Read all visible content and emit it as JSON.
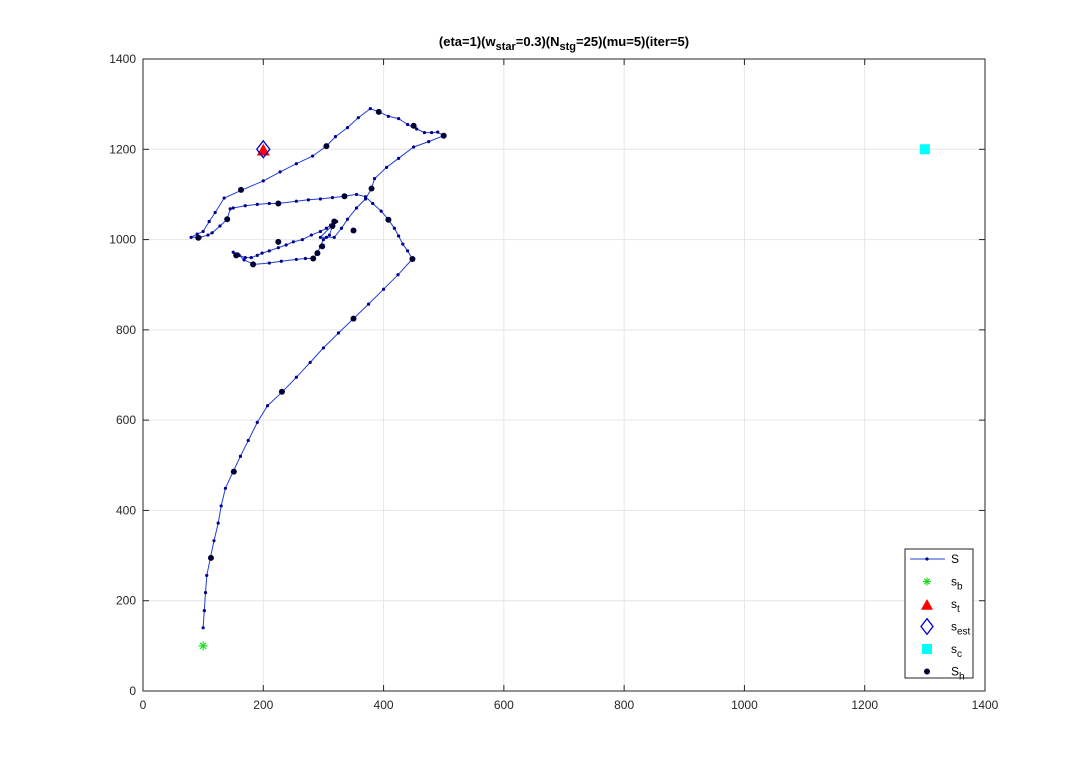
{
  "chart_data": {
    "type": "scatter",
    "title": {
      "parts": [
        {
          "text": "(eta=1)(w",
          "sub": false
        },
        {
          "text": "star",
          "sub": true
        },
        {
          "text": "=0.3)(N",
          "sub": false
        },
        {
          "text": "stg",
          "sub": true
        },
        {
          "text": "=25)(mu=5)(iter=5)",
          "sub": false
        }
      ]
    },
    "xlabel": "",
    "ylabel": "",
    "xlim": [
      0,
      1400
    ],
    "ylim": [
      0,
      1400
    ],
    "xticks": [
      "0",
      "200",
      "400",
      "600",
      "800",
      "1000",
      "1200",
      "1400"
    ],
    "yticks": [
      "0",
      "200",
      "400",
      "600",
      "800",
      "1000",
      "1200",
      "1400"
    ],
    "grid": true,
    "legend_position": "bottom-right",
    "colors": {
      "path": "#1f3fd6",
      "path_dot": "#00008b",
      "s_b": "#22dd22",
      "s_t": "#ff0000",
      "s_est": "#0000cc",
      "s_c": "#00ffff",
      "S_h": "#000033",
      "grid": "#e6e6e6",
      "axis": "#262626"
    },
    "series": {
      "S": [
        [
          100,
          140
        ],
        [
          102,
          178
        ],
        [
          104,
          218
        ],
        [
          106,
          256
        ],
        [
          112,
          295
        ],
        [
          118,
          333
        ],
        [
          125,
          372
        ],
        [
          130,
          410
        ],
        [
          137,
          449
        ],
        [
          150,
          486
        ],
        [
          162,
          520
        ],
        [
          175,
          555
        ],
        [
          190,
          595
        ],
        [
          207,
          632
        ],
        [
          232,
          663
        ],
        [
          255,
          695
        ],
        [
          278,
          728
        ],
        [
          300,
          760
        ],
        [
          325,
          793
        ],
        [
          350,
          825
        ],
        [
          375,
          857
        ],
        [
          400,
          890
        ],
        [
          424,
          922
        ],
        [
          448,
          957
        ],
        [
          440,
          975
        ],
        [
          432,
          990
        ],
        [
          425,
          1008
        ],
        [
          418,
          1025
        ],
        [
          408,
          1044
        ],
        [
          396,
          1063
        ],
        [
          382,
          1080
        ],
        [
          370,
          1095
        ],
        [
          355,
          1100
        ],
        [
          335,
          1096
        ],
        [
          315,
          1093
        ],
        [
          295,
          1090
        ],
        [
          275,
          1088
        ],
        [
          255,
          1085
        ],
        [
          225,
          1080
        ],
        [
          210,
          1080
        ],
        [
          190,
          1078
        ],
        [
          170,
          1075
        ],
        [
          150,
          1070
        ],
        [
          145,
          1068
        ],
        [
          140,
          1045
        ],
        [
          128,
          1030
        ],
        [
          115,
          1015
        ],
        [
          108,
          1010
        ],
        [
          95,
          1005
        ],
        [
          80,
          1005
        ],
        [
          90,
          1012
        ],
        [
          100,
          1018
        ],
        [
          110,
          1040
        ],
        [
          120,
          1060
        ],
        [
          135,
          1092
        ],
        [
          165,
          1110
        ],
        [
          200,
          1130
        ],
        [
          228,
          1150
        ],
        [
          255,
          1168
        ],
        [
          282,
          1185
        ],
        [
          305,
          1207
        ],
        [
          320,
          1228
        ],
        [
          340,
          1248
        ],
        [
          358,
          1270
        ],
        [
          378,
          1290
        ],
        [
          392,
          1283
        ],
        [
          408,
          1273
        ],
        [
          425,
          1268
        ],
        [
          440,
          1255
        ],
        [
          455,
          1245
        ],
        [
          468,
          1237
        ],
        [
          480,
          1237
        ],
        [
          490,
          1238
        ],
        [
          500,
          1230
        ],
        [
          475,
          1217
        ],
        [
          450,
          1205
        ],
        [
          425,
          1180
        ],
        [
          405,
          1160
        ],
        [
          385,
          1135
        ],
        [
          380,
          1113
        ],
        [
          370,
          1090
        ],
        [
          355,
          1070
        ],
        [
          340,
          1045
        ],
        [
          330,
          1025
        ],
        [
          318,
          1005
        ],
        [
          305,
          1005
        ],
        [
          295,
          1005
        ],
        [
          315,
          1032
        ],
        [
          322,
          1040
        ],
        [
          318,
          1038
        ],
        [
          312,
          1032
        ],
        [
          305,
          1025
        ],
        [
          295,
          1018
        ],
        [
          280,
          1010
        ],
        [
          265,
          1000
        ],
        [
          250,
          995
        ],
        [
          238,
          988
        ],
        [
          225,
          982
        ],
        [
          210,
          975
        ],
        [
          198,
          970
        ],
        [
          190,
          965
        ],
        [
          180,
          960
        ],
        [
          170,
          960
        ],
        [
          160,
          965
        ],
        [
          155,
          968
        ],
        [
          150,
          972
        ],
        [
          158,
          968
        ],
        [
          168,
          955
        ],
        [
          185,
          945
        ],
        [
          210,
          948
        ],
        [
          230,
          952
        ],
        [
          255,
          956
        ],
        [
          270,
          958
        ],
        [
          283,
          958
        ],
        [
          290,
          970
        ],
        [
          295,
          985
        ],
        [
          300,
          1000
        ],
        [
          310,
          1010
        ],
        [
          315,
          1030
        ],
        [
          318,
          1040
        ]
      ],
      "S_h": [
        [
          113,
          295
        ],
        [
          151,
          486
        ],
        [
          231,
          663
        ],
        [
          350,
          825
        ],
        [
          448,
          957
        ],
        [
          408,
          1044
        ],
        [
          380,
          1113
        ],
        [
          335,
          1096
        ],
        [
          225,
          1080
        ],
        [
          140,
          1045
        ],
        [
          92,
          1004
        ],
        [
          163,
          1110
        ],
        [
          305,
          1207
        ],
        [
          392,
          1283
        ],
        [
          450,
          1252
        ],
        [
          500,
          1230
        ],
        [
          350,
          1020
        ],
        [
          318,
          1040
        ],
        [
          315,
          1030
        ],
        [
          298,
          985
        ],
        [
          290,
          970
        ],
        [
          283,
          958
        ],
        [
          225,
          995
        ],
        [
          183,
          945
        ],
        [
          155,
          965
        ]
      ],
      "s_b": [
        [
          100,
          100
        ]
      ],
      "s_t": [
        [
          200,
          1200
        ]
      ],
      "s_est": [
        [
          200,
          1200
        ]
      ],
      "s_c": [
        [
          1300,
          1200
        ]
      ]
    },
    "legend": [
      {
        "key": "S",
        "label": "S",
        "sub": ""
      },
      {
        "key": "s_b",
        "label": "s",
        "sub": "b"
      },
      {
        "key": "s_t",
        "label": "s",
        "sub": "t"
      },
      {
        "key": "s_est",
        "label": "s",
        "sub": "est"
      },
      {
        "key": "s_c",
        "label": "s",
        "sub": "c"
      },
      {
        "key": "S_h",
        "label": "S",
        "sub": "h"
      }
    ]
  }
}
